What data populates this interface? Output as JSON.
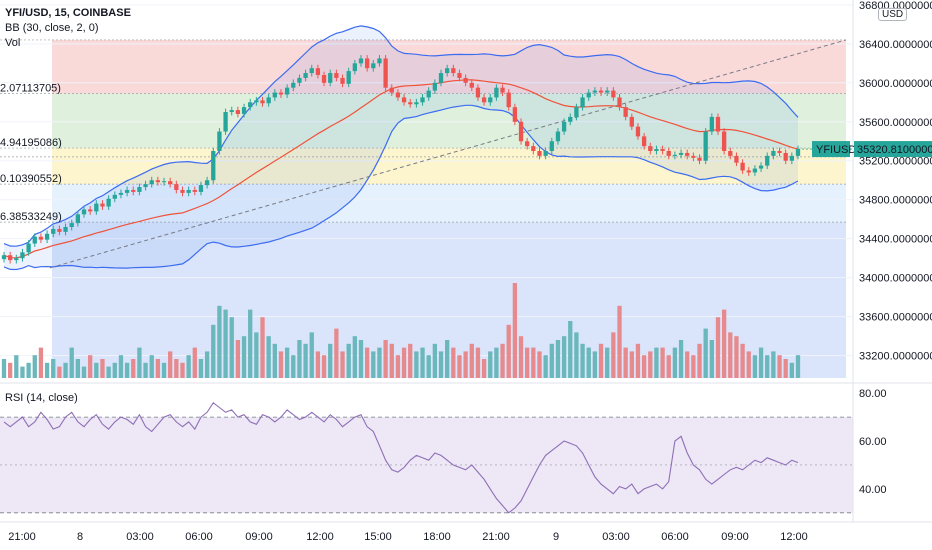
{
  "header": {
    "symbol": "YFI/USD, 15, COINBASE",
    "bb_label": "BB (30, close, 2, 0)",
    "vol_label": "Vol",
    "currency_badge": "USD"
  },
  "rsi_panel": {
    "label": "RSI (14, close)"
  },
  "fib_labels": [
    "2.07113705)",
    "4.94195086)",
    "0.10390552)",
    "6.38533249)"
  ],
  "price_tag": {
    "symbol": "YFIUSD",
    "value": "35320.81000000"
  },
  "colors": {
    "up": "#26a69a",
    "down": "#ef5350",
    "bb_band": "#3c6cf0",
    "bb_basis": "#f0533a",
    "vol_up": "#6ab7bc",
    "vol_down": "#e68a8e",
    "rsi_line": "#8e6fb6",
    "rsi_bg": "#ede7f6",
    "fib_red": "#f9d2d2",
    "fib_green": "#d9eed7",
    "fib_yellow": "#fbf3c4",
    "fib_lightblue": "#e1eefb",
    "fib_blue": "#d6e2fb",
    "tag_green": "#26a69a"
  },
  "chart_data": {
    "type": "candlestick",
    "price_axis": {
      "ticks": [
        "36800.00000000",
        "36400.00000000",
        "36000.00000000",
        "35600.00000000",
        "35200.00000000",
        "34800.00000000",
        "34400.00000000",
        "34000.00000000",
        "33600.00000000",
        "33200.00000000"
      ],
      "range": [
        32970,
        36850
      ]
    },
    "rsi_axis": {
      "ticks": [
        "80.00",
        "60.00",
        "40.00"
      ],
      "range": [
        27,
        83
      ],
      "bands": [
        70,
        30
      ],
      "mid": 50
    },
    "time_axis": {
      "ticks": [
        "21:00",
        "8",
        "03:00",
        "06:00",
        "09:00",
        "12:00",
        "15:00",
        "18:00",
        "21:00",
        "9",
        "03:00",
        "06:00",
        "09:00",
        "12:00"
      ]
    },
    "fib_levels": [
      36440,
      35890,
      35330,
      35240,
      34960,
      34570
    ],
    "closes": [
      34230,
      34180,
      34200,
      34260,
      34350,
      34420,
      34390,
      34450,
      34500,
      34470,
      34520,
      34560,
      34650,
      34700,
      34680,
      34760,
      34730,
      34810,
      34850,
      34870,
      34900,
      34880,
      34930,
      34960,
      35000,
      34980,
      34990,
      34960,
      34900,
      34870,
      34900,
      34880,
      34950,
      35000,
      35300,
      35500,
      35700,
      35720,
      35680,
      35750,
      35800,
      35820,
      35790,
      35850,
      35900,
      35880,
      35950,
      36000,
      36050,
      36100,
      36150,
      36080,
      36000,
      36100,
      36050,
      35990,
      36120,
      36200,
      36250,
      36150,
      36200,
      36250,
      35950,
      35900,
      35850,
      35800,
      35780,
      35800,
      35850,
      35920,
      36000,
      36100,
      36150,
      36100,
      36050,
      36000,
      35950,
      35850,
      35800,
      35850,
      35950,
      35900,
      35750,
      35600,
      35400,
      35350,
      35300,
      35250,
      35300,
      35400,
      35500,
      35600,
      35650,
      35750,
      35850,
      35900,
      35920,
      35900,
      35920,
      35850,
      35750,
      35650,
      35550,
      35450,
      35350,
      35300,
      35320,
      35300,
      35250,
      35260,
      35280,
      35250,
      35230,
      35200,
      35500,
      35650,
      35500,
      35300,
      35250,
      35180,
      35100,
      35080,
      35120,
      35150,
      35250,
      35300,
      35280,
      35200,
      35250,
      35320
    ],
    "vol": [
      5,
      4,
      6,
      3,
      4,
      6,
      8,
      4,
      5,
      3,
      4,
      8,
      5,
      3,
      6,
      4,
      5,
      3,
      4,
      6,
      4,
      5,
      8,
      4,
      6,
      5,
      4,
      7,
      5,
      4,
      6,
      8,
      5,
      7,
      14,
      19,
      18,
      16,
      10,
      11,
      18,
      12,
      16,
      11,
      9,
      7,
      8,
      6,
      10,
      9,
      12,
      7,
      6,
      9,
      13,
      7,
      9,
      11,
      10,
      8,
      7,
      8,
      10,
      9,
      6,
      8,
      9,
      7,
      8,
      6,
      9,
      7,
      10,
      8,
      6,
      7,
      9,
      8,
      5,
      7,
      8,
      9,
      14,
      25,
      11,
      8,
      8,
      7,
      6,
      9,
      10,
      11,
      15,
      12,
      9,
      8,
      7,
      9,
      8,
      12,
      19,
      8,
      7,
      9,
      6,
      7,
      8,
      8,
      6,
      8,
      10,
      7,
      6,
      9,
      13,
      10,
      16,
      18,
      12,
      11,
      9,
      7,
      6,
      8,
      6,
      7,
      6,
      5,
      4,
      6
    ],
    "rsi": [
      68,
      66,
      68,
      70,
      66,
      68,
      72,
      69,
      65,
      66,
      70,
      72,
      68,
      66,
      69,
      71,
      67,
      65,
      68,
      70,
      69,
      67,
      71,
      66,
      64,
      67,
      70,
      71,
      68,
      66,
      68,
      65,
      70,
      72,
      76,
      74,
      72,
      73,
      70,
      71,
      68,
      67,
      71,
      70,
      68,
      70,
      73,
      71,
      69,
      70,
      72,
      70,
      68,
      71,
      69,
      66,
      68,
      70,
      71,
      66,
      64,
      58,
      52,
      48,
      47,
      49,
      52,
      54,
      53,
      52,
      55,
      54,
      52,
      50,
      49,
      48,
      50,
      47,
      44,
      40,
      36,
      33,
      30,
      32,
      35,
      40,
      45,
      50,
      54,
      56,
      58,
      60,
      59,
      58,
      55,
      50,
      45,
      42,
      40,
      38,
      41,
      40,
      42,
      38,
      40,
      41,
      42,
      40,
      43,
      60,
      62,
      55,
      50,
      48,
      44,
      42,
      44,
      46,
      48,
      49,
      48,
      50,
      52,
      51,
      53,
      52,
      51,
      50,
      52,
      51
    ]
  }
}
